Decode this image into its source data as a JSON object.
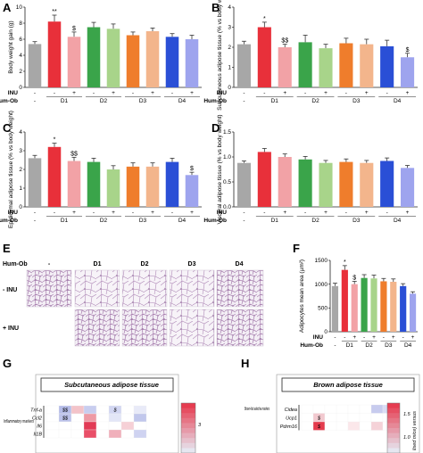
{
  "bar_colors": [
    "#a7a7a7",
    "#e8303a",
    "#f2a2a6",
    "#3aa44a",
    "#a8d48a",
    "#ef7d2c",
    "#f3b58c",
    "#2a4fd6",
    "#9ea4ee"
  ],
  "group_table": {
    "inu_label": "INU",
    "humob_label": "Hum-Ob",
    "inu_row": [
      "-",
      "-",
      "+",
      "-",
      "+",
      "-",
      "+",
      "-",
      "+"
    ],
    "humob_row": [
      "-",
      "D1",
      "D2",
      "D3",
      "D4"
    ]
  },
  "chart_data": [
    {
      "panel": "A",
      "type": "bar",
      "ylabel": "Body weight gain (g)",
      "ylim": [
        0,
        10
      ],
      "yticks": [
        "0",
        "2",
        "4",
        "6",
        "8",
        "10"
      ],
      "values": [
        5.4,
        8.2,
        6.3,
        7.5,
        7.3,
        6.5,
        7.0,
        6.3,
        6.0
      ],
      "errors": [
        0.3,
        0.8,
        0.6,
        0.6,
        0.6,
        0.4,
        0.4,
        0.4,
        0.5
      ],
      "annotations": [
        {
          "bar": 1,
          "text": "**"
        },
        {
          "bar": 2,
          "text": "$"
        }
      ]
    },
    {
      "panel": "B",
      "type": "bar",
      "ylabel": "Subcutaneous adipose tissue (% vs body weight)",
      "ylim": [
        0,
        4
      ],
      "yticks": [
        "0",
        "1",
        "2",
        "3",
        "4"
      ],
      "values": [
        2.15,
        3.0,
        2.0,
        2.25,
        1.95,
        2.2,
        2.15,
        2.05,
        1.5
      ],
      "errors": [
        0.15,
        0.25,
        0.15,
        0.35,
        0.2,
        0.25,
        0.25,
        0.3,
        0.2
      ],
      "annotations": [
        {
          "bar": 1,
          "text": "*"
        },
        {
          "bar": 2,
          "text": "$$"
        },
        {
          "bar": 8,
          "text": "$"
        }
      ]
    },
    {
      "panel": "C",
      "type": "bar",
      "ylabel": "Epididymal adipose tissue (% vs body weight)",
      "ylim": [
        0,
        4
      ],
      "yticks": [
        "0",
        "1",
        "2",
        "3",
        "4"
      ],
      "values": [
        2.6,
        3.2,
        2.45,
        2.4,
        2.0,
        2.15,
        2.15,
        2.4,
        1.7
      ],
      "errors": [
        0.15,
        0.2,
        0.2,
        0.2,
        0.2,
        0.2,
        0.2,
        0.2,
        0.15
      ],
      "annotations": [
        {
          "bar": 1,
          "text": "*"
        },
        {
          "bar": 2,
          "text": "$$"
        },
        {
          "bar": 8,
          "text": "$"
        }
      ]
    },
    {
      "panel": "D",
      "type": "bar",
      "ylabel": "Visceral adipose tissue (% vs body weight)",
      "ylim": [
        0,
        1.5
      ],
      "yticks": [
        "0.0",
        "0.5",
        "1.0",
        "1.5"
      ],
      "values": [
        0.88,
        1.1,
        1.0,
        0.95,
        0.88,
        0.9,
        0.88,
        0.92,
        0.78
      ],
      "errors": [
        0.04,
        0.07,
        0.06,
        0.06,
        0.05,
        0.06,
        0.05,
        0.06,
        0.05
      ],
      "annotations": []
    },
    {
      "panel": "F",
      "type": "bar",
      "ylabel": "Adipocytes mean area (µm²)",
      "ylim": [
        0,
        1500
      ],
      "yticks": [
        "0",
        "500",
        "1000",
        "1500"
      ],
      "values": [
        960,
        1300,
        1000,
        1130,
        1120,
        1060,
        1050,
        960,
        800
      ],
      "errors": [
        60,
        90,
        60,
        70,
        70,
        60,
        60,
        50,
        40
      ],
      "annotations": [
        {
          "bar": 1,
          "text": "*"
        },
        {
          "bar": 2,
          "text": "$"
        }
      ]
    }
  ],
  "histology": {
    "panel": "E",
    "col_labels": [
      "-",
      "D1",
      "D2",
      "D3",
      "D4"
    ],
    "header": "Hum-Ob",
    "row_labels": [
      "- INU",
      "+ INU"
    ]
  },
  "heatmaps": [
    {
      "panel": "G",
      "title": "Subcutaneous adipose tissue",
      "group_label": "Inflammatory markers",
      "genes": [
        "Tnf-a",
        "Ccl2",
        "Il6",
        "Il1B"
      ],
      "cell_colors": [
        [
          "#ffffff",
          "#b5bce8",
          "#f3c3c9",
          "#c8cdef",
          "#ffffff",
          "#d2d6f2",
          "#ffffff",
          "#e8eaf8"
        ],
        [
          "#ffffff",
          "#bcc2ea",
          "#ffffff",
          "#ee9aa5",
          "#ffffff",
          "#e3e6f7",
          "#ffffff",
          "#c1c7ec"
        ],
        [
          "#ffffff",
          "#ffffff",
          "#ffffff",
          "#e23a55",
          "#ffffff",
          "#ffffff",
          "#f6d0d6",
          "#ffffff"
        ],
        [
          "#ffffff",
          "#ffffff",
          "#ffffff",
          "#e94f68",
          "#ffffff",
          "#f0b0bb",
          "#ffffff",
          "#cfd3f1"
        ]
      ],
      "cell_labels": [
        {
          "row": 0,
          "col": 1,
          "text": "$$"
        },
        {
          "row": 1,
          "col": 1,
          "text": "$$"
        },
        {
          "row": 0,
          "col": 5,
          "text": "$"
        }
      ],
      "colorbar_ticks": [
        "3"
      ]
    },
    {
      "panel": "H",
      "title": "Brown adipose tissue",
      "group_label": "Brown-fat selective markers",
      "genes": [
        "Cidea",
        "Ucp1",
        "Pdrm16"
      ],
      "cell_colors": [
        [
          "#ffffff",
          "#ffffff",
          "#ffffff",
          "#ffffff",
          "#ffffff",
          "#ffffff",
          "#c7cbee",
          "#d9dcf4"
        ],
        [
          "#ffffff",
          "#f2c9cf",
          "#ffffff",
          "#ffffff",
          "#ffffff",
          "#ffffff",
          "#ffffff",
          "#ffffff"
        ],
        [
          "#ffffff",
          "#e43b4d",
          "#ffffff",
          "#ffffff",
          "#fbe7ea",
          "#ffffff",
          "#f5d2d8",
          "#ffffff"
        ]
      ],
      "cell_labels": [
        {
          "row": 1,
          "col": 1,
          "text": "$"
        },
        {
          "row": 2,
          "col": 1,
          "text": "$"
        }
      ],
      "colorbar_ticks": [
        "1.5",
        "1.0"
      ],
      "colorbar_label": "lised mice) versus"
    }
  ],
  "panel_letters": [
    "A",
    "B",
    "C",
    "D",
    "E",
    "F",
    "G",
    "H"
  ]
}
